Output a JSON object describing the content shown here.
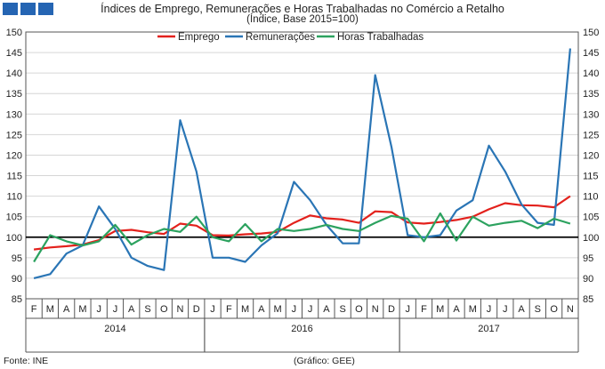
{
  "header": {
    "blocks": [
      "block-1",
      "block-2",
      "block-3"
    ]
  },
  "chart_data": {
    "type": "line",
    "title": "Índices de Emprego, Remunerações e Horas Trabalhadas no Comércio a Retalho",
    "subtitle": "(Índice, Base 2015=100)",
    "xlabel": "",
    "ylabel": "",
    "ylim": [
      85,
      150
    ],
    "yticks": [
      85,
      90,
      95,
      100,
      105,
      110,
      115,
      120,
      125,
      130,
      135,
      140,
      145,
      150
    ],
    "grid": true,
    "legend_position": "top-center",
    "reference_line": 100,
    "categories": [
      "F",
      "M",
      "A",
      "M",
      "J",
      "J",
      "A",
      "S",
      "O",
      "N",
      "D",
      "J",
      "F",
      "M",
      "A",
      "M",
      "J",
      "J",
      "A",
      "S",
      "O",
      "N",
      "D",
      "J",
      "F",
      "M",
      "A",
      "M",
      "J",
      "J",
      "A",
      "S",
      "O",
      "N"
    ],
    "years": [
      {
        "label": "2014",
        "start": 0,
        "end": 10
      },
      {
        "label": "2016",
        "start": 11,
        "end": 22
      },
      {
        "label": "2017",
        "start": 23,
        "end": 33
      }
    ],
    "series": [
      {
        "name": "Emprego",
        "color": "#e3211c",
        "values": [
          97.0,
          97.5,
          97.8,
          98.2,
          99.3,
          101.5,
          101.8,
          101.2,
          100.8,
          103.3,
          102.8,
          100.5,
          100.4,
          100.7,
          100.9,
          101.3,
          103.5,
          105.3,
          104.6,
          104.3,
          103.5,
          106.3,
          106.1,
          103.6,
          103.3,
          103.7,
          104.2,
          105.0,
          106.8,
          108.3,
          107.8,
          107.7,
          107.3,
          110.0
        ]
      },
      {
        "name": "Remunerações",
        "color": "#2a75b5",
        "values": [
          90.0,
          91.0,
          96.0,
          98.0,
          107.5,
          102.0,
          95.0,
          93.0,
          92.0,
          128.5,
          116.0,
          95.0,
          95.0,
          94.0,
          98.0,
          101.0,
          113.5,
          109.0,
          103.0,
          98.5,
          98.5,
          139.5,
          122.0,
          100.5,
          100.0,
          100.5,
          106.5,
          109.0,
          122.3,
          116.0,
          108.0,
          103.5,
          103.0,
          146.0
        ]
      },
      {
        "name": "Horas Trabalhadas",
        "color": "#2ca25f",
        "values": [
          94.0,
          100.5,
          99.0,
          98.0,
          99.0,
          103.0,
          98.2,
          100.5,
          102.0,
          101.3,
          105.0,
          100.0,
          99.0,
          103.2,
          99.0,
          102.0,
          101.5,
          102.0,
          103.0,
          102.0,
          101.5,
          103.5,
          105.2,
          104.5,
          99.0,
          105.8,
          99.2,
          105.0,
          102.8,
          103.5,
          104.0,
          102.2,
          104.5,
          103.3
        ]
      }
    ]
  },
  "footer": {
    "source": "Fonte: INE",
    "credit": "(Gráfico: GEE)"
  }
}
